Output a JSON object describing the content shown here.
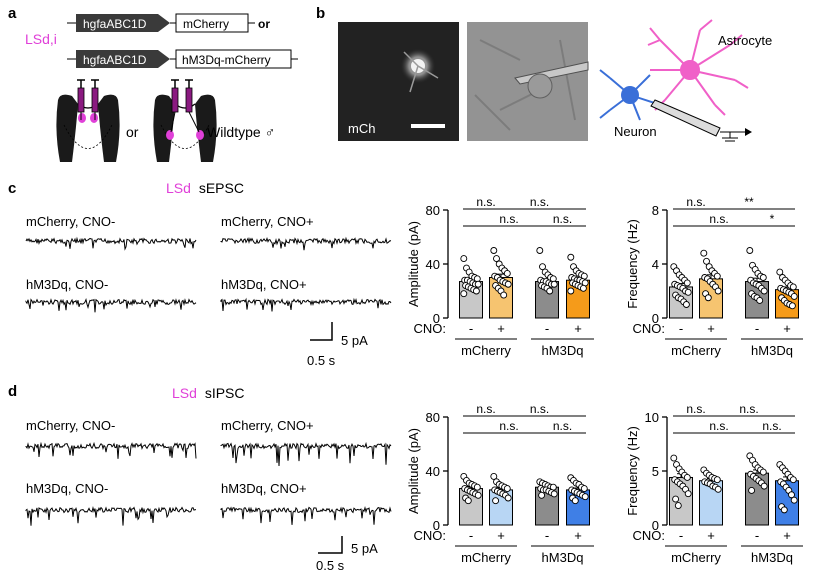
{
  "panels": {
    "a": {
      "letter": "a",
      "group_label": "LSd,i",
      "construct_promoter": "hgfaABC1D",
      "construct_1_reporter": "mCherry",
      "construct_or": "or",
      "construct_2_reporter": "hM3Dq-mCherry",
      "mid_or": "or",
      "wildtype": "Wildtype ♂"
    },
    "b": {
      "letter": "b",
      "image_label": "mCh",
      "astrocyte": "Astrocyte",
      "neuron": "Neuron"
    },
    "c": {
      "letter": "c",
      "title_region": "LSd",
      "title_rest": "sEPSC",
      "trace_labels": [
        "mCherry, CNO-",
        "mCherry, CNO+",
        "hM3Dq, CNO-",
        "hM3Dq, CNO+"
      ],
      "scale_y": "5 pA",
      "scale_x": "0.5 s"
    },
    "d": {
      "letter": "d",
      "title_region": "LSd",
      "title_rest": "sIPSC",
      "trace_labels": [
        "mCherry, CNO-",
        "mCherry, CNO+",
        "hM3Dq, CNO-",
        "hM3Dq, CNO+"
      ],
      "scale_y": "5 pA",
      "scale_x": "0.5 s"
    }
  },
  "cno_label": "CNO:",
  "cno_values": [
    "-",
    "+",
    "-",
    "+"
  ],
  "groups": [
    "mCherry",
    "hM3Dq"
  ],
  "colors": {
    "mcherry_cno_minus": "#c8c8c8",
    "mcherry_cno_plus": "#f6c470",
    "hm3dq_cno_minus": "#8c8c8c",
    "hm3dq_cno_plus": "#f59b1a",
    "ipsc_mcherry_cno_plus": "#b8d6f4",
    "ipsc_hm3dq_cno_plus": "#3f7fe6",
    "magenta": "#e040d8",
    "neuron_blue": "#3a6fd8",
    "astro_pink": "#f060c8"
  },
  "chart_data": [
    {
      "id": "c-amplitude",
      "type": "bar",
      "title": "",
      "xlabel": "",
      "ylabel": "Amplitude (pA)",
      "ylim": [
        0,
        80
      ],
      "yticks": [
        0,
        40,
        80
      ],
      "categories": [
        "mCherry CNO-",
        "mCherry CNO+",
        "hM3Dq CNO-",
        "hM3Dq CNO+"
      ],
      "values": [
        27,
        30,
        27,
        28
      ],
      "sem": [
        1.5,
        2.5,
        1.2,
        1.2
      ],
      "points": [
        [
          44,
          37,
          34,
          31,
          30,
          29,
          28,
          28,
          27,
          26,
          25,
          25,
          24,
          23,
          22,
          21,
          20,
          18
        ],
        [
          50,
          44,
          40,
          37,
          35,
          33,
          31,
          30,
          28,
          27,
          26,
          25,
          24,
          22,
          20,
          17
        ],
        [
          50,
          38,
          34,
          32,
          30,
          29,
          28,
          27,
          27,
          26,
          25,
          25,
          24,
          23,
          22,
          20
        ],
        [
          45,
          38,
          35,
          33,
          32,
          31,
          30,
          29,
          28,
          28,
          27,
          26,
          26,
          25,
          24,
          23,
          22,
          20
        ]
      ],
      "comparisons": [
        {
          "from": 0,
          "to": 1,
          "label": "n.s."
        },
        {
          "from": 1,
          "to": 3,
          "label": "n.s."
        },
        {
          "from": 0,
          "to": 2,
          "label": "n.s."
        },
        {
          "from": 2,
          "to": 3,
          "label": "n.s."
        }
      ]
    },
    {
      "id": "c-frequency",
      "type": "bar",
      "title": "",
      "xlabel": "",
      "ylabel": "Frequency (Hz)",
      "ylim": [
        0,
        8
      ],
      "yticks": [
        0,
        4,
        8
      ],
      "categories": [
        "mCherry CNO-",
        "mCherry CNO+",
        "hM3Dq CNO-",
        "hM3Dq CNO+"
      ],
      "values": [
        2.3,
        2.9,
        2.7,
        2.1
      ],
      "sem": [
        0.25,
        0.3,
        0.25,
        0.2
      ],
      "points": [
        [
          3.8,
          3.5,
          3.2,
          3.0,
          2.8,
          2.6,
          2.5,
          2.4,
          2.3,
          2.2,
          2.0,
          1.9,
          1.7,
          1.5,
          1.4,
          1.2,
          1.0
        ],
        [
          4.8,
          4.2,
          3.8,
          3.5,
          3.3,
          3.1,
          3.0,
          2.9,
          2.7,
          2.5,
          2.3,
          2.0,
          1.8,
          1.5
        ],
        [
          5.0,
          3.9,
          3.6,
          3.3,
          3.1,
          3.0,
          2.8,
          2.6,
          2.5,
          2.4,
          2.2,
          2.0,
          1.8,
          1.6,
          1.5,
          1.3
        ],
        [
          3.4,
          3.0,
          2.8,
          2.6,
          2.4,
          2.3,
          2.2,
          2.1,
          2.0,
          1.9,
          1.8,
          1.6,
          1.5,
          1.3,
          1.1,
          1.0,
          0.9
        ]
      ],
      "comparisons": [
        {
          "from": 0,
          "to": 1,
          "label": "n.s."
        },
        {
          "from": 1,
          "to": 3,
          "label": "**"
        },
        {
          "from": 0,
          "to": 2,
          "label": "n.s."
        },
        {
          "from": 2,
          "to": 3,
          "label": "*"
        }
      ]
    },
    {
      "id": "d-amplitude",
      "type": "bar",
      "title": "",
      "xlabel": "",
      "ylabel": "Amplitude (pA)",
      "ylim": [
        0,
        80
      ],
      "yticks": [
        0,
        40,
        80
      ],
      "categories": [
        "mCherry CNO-",
        "mCherry CNO+",
        "hM3Dq CNO-",
        "hM3Dq CNO+"
      ],
      "values": [
        27,
        26,
        28,
        26
      ],
      "sem": [
        1.5,
        1.5,
        1.2,
        1.4
      ],
      "points": [
        [
          36,
          33,
          31,
          30,
          29,
          28,
          27,
          26,
          25,
          24,
          23,
          22,
          20,
          18
        ],
        [
          36,
          32,
          30,
          29,
          28,
          27,
          26,
          25,
          24,
          23,
          22,
          20,
          18
        ],
        [
          32,
          31,
          30,
          29,
          28,
          28,
          27,
          26,
          26,
          25,
          24,
          23,
          22
        ],
        [
          35,
          33,
          31,
          30,
          28,
          27,
          26,
          25,
          24,
          23,
          22,
          21,
          20,
          18
        ]
      ],
      "comparisons": [
        {
          "from": 0,
          "to": 1,
          "label": "n.s."
        },
        {
          "from": 1,
          "to": 3,
          "label": "n.s."
        },
        {
          "from": 0,
          "to": 2,
          "label": "n.s."
        },
        {
          "from": 2,
          "to": 3,
          "label": "n.s."
        }
      ]
    },
    {
      "id": "d-frequency",
      "type": "bar",
      "title": "",
      "xlabel": "",
      "ylabel": "Frequency (Hz)",
      "ylim": [
        0,
        10
      ],
      "yticks": [
        0,
        5,
        10
      ],
      "categories": [
        "mCherry CNO-",
        "mCherry CNO+",
        "hM3Dq CNO-",
        "hM3Dq CNO+"
      ],
      "values": [
        4.4,
        4.1,
        4.8,
        4.1
      ],
      "sem": [
        0.35,
        0.2,
        0.3,
        0.35
      ],
      "points": [
        [
          6.2,
          5.6,
          5.2,
          4.9,
          4.6,
          4.4,
          4.2,
          4.0,
          3.8,
          3.6,
          3.3,
          2.9,
          2.4,
          1.8
        ],
        [
          5.1,
          4.8,
          4.6,
          4.4,
          4.3,
          4.2,
          4.0,
          3.9,
          3.8,
          3.6,
          3.5,
          3.3
        ],
        [
          6.4,
          6.0,
          5.6,
          5.3,
          5.1,
          4.9,
          4.7,
          4.5,
          4.3,
          4.1,
          3.9,
          3.6,
          3.2
        ],
        [
          5.6,
          5.3,
          5.0,
          4.7,
          4.4,
          4.2,
          4.0,
          3.8,
          3.5,
          3.2,
          2.8,
          2.3,
          1.7,
          1.4
        ]
      ],
      "comparisons": [
        {
          "from": 0,
          "to": 1,
          "label": "n.s."
        },
        {
          "from": 1,
          "to": 3,
          "label": "n.s."
        },
        {
          "from": 0,
          "to": 2,
          "label": "n.s."
        },
        {
          "from": 2,
          "to": 3,
          "label": "n.s."
        }
      ]
    }
  ]
}
